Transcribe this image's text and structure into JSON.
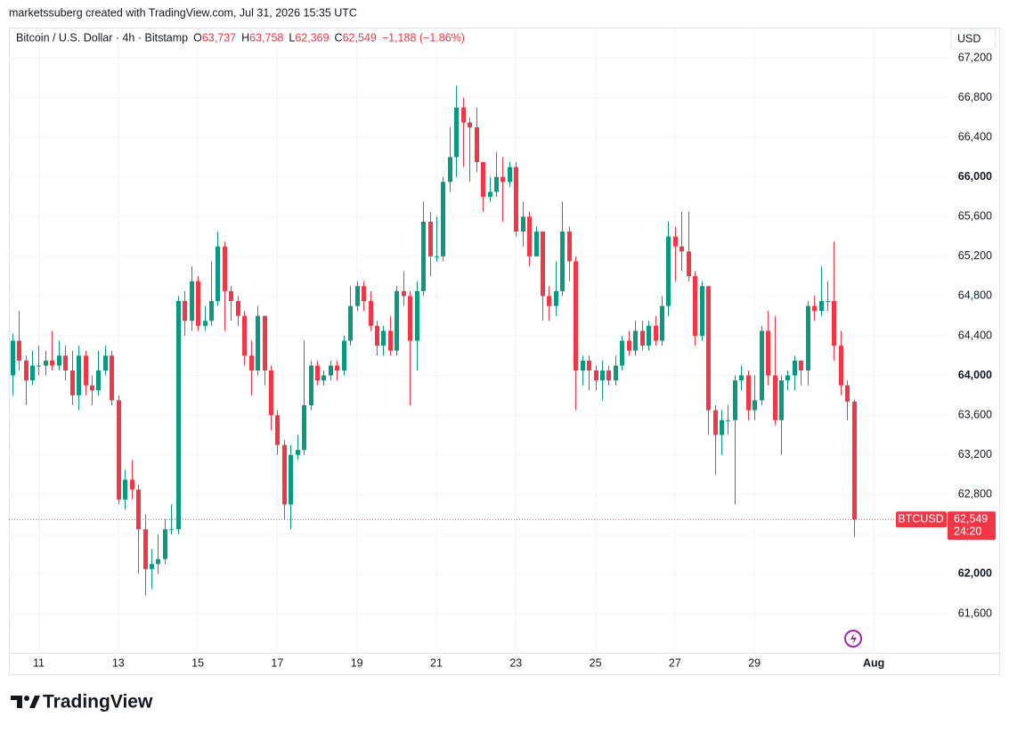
{
  "header": "marketssuberg created with TradingView.com, Jul 31, 2026 15:35 UTC",
  "footer": "TradingView",
  "chart_data": {
    "type": "candlestick",
    "title": "Bitcoin / U.S. Dollar · 4h · Bitstamp",
    "ohlc_letters": [
      "O",
      "H",
      "L",
      "C"
    ],
    "ohlc_labels": [
      "63,737",
      "63,758",
      "62,369",
      "62,549"
    ],
    "change_label": "−1,188 (−1.86%)",
    "currency": "USD",
    "symbol": "BTCUSD",
    "last_price_label": "62,549",
    "countdown": "24:20",
    "up_color": "#089981",
    "down_color": "#f23645",
    "grid": true,
    "open": [
      64000,
      64350,
      64150,
      63950,
      64100,
      64100,
      64150,
      64100,
      64200,
      64050,
      63800,
      64200,
      63900,
      63850,
      64050,
      64200,
      63750,
      62750,
      62950,
      62850,
      62450,
      62050,
      62100,
      62150,
      62450,
      62450,
      64750,
      64550,
      64950,
      64500,
      64550,
      64750,
      65300,
      64850,
      64750,
      64600,
      64200,
      64050,
      64600,
      64050,
      63600,
      63300,
      62700,
      63200,
      63250,
      63700,
      64100,
      63950,
      64000,
      64100,
      64050,
      64350,
      64700,
      64900,
      64750,
      64500,
      64300,
      64450,
      64250,
      64850,
      64800,
      64350,
      64850,
      65550,
      65200,
      65200,
      65950,
      66200,
      66700,
      66550,
      66500,
      66150,
      65800,
      65850,
      66000,
      65950,
      66100,
      65450,
      65600,
      65200,
      65450,
      64800,
      64700,
      64850,
      65450,
      65150,
      64050,
      64150,
      64050,
      63950,
      64050,
      63950,
      64100,
      64350,
      64250,
      64450,
      64300,
      64500,
      64350,
      64700,
      65400,
      65300,
      65250,
      65000,
      64400,
      64900,
      63650,
      63400,
      63550,
      63550,
      63950,
      64000,
      63650,
      63750,
      64450,
      64000,
      63550,
      63950,
      64000,
      64150,
      64050,
      64700,
      64650,
      64750,
      64750,
      64300,
      63900,
      63737
    ],
    "high": [
      64420,
      64650,
      64200,
      64250,
      64300,
      64250,
      64450,
      64350,
      64300,
      64250,
      64300,
      64250,
      64000,
      64250,
      64300,
      64250,
      63800,
      63050,
      63150,
      62900,
      62600,
      62250,
      62400,
      62550,
      62700,
      64800,
      64850,
      65100,
      65000,
      64700,
      65150,
      65450,
      65350,
      64900,
      64800,
      64650,
      64350,
      64700,
      64600,
      64100,
      63650,
      63350,
      63300,
      63400,
      64350,
      64150,
      64150,
      64050,
      64150,
      64150,
      64400,
      64900,
      64950,
      64950,
      64850,
      64550,
      64500,
      64600,
      64900,
      65050,
      64850,
      64950,
      65750,
      65650,
      65600,
      66000,
      66500,
      66920,
      66800,
      66600,
      66700,
      66150,
      66000,
      66250,
      66200,
      66150,
      66150,
      65750,
      65650,
      65500,
      65450,
      64900,
      65150,
      65750,
      65500,
      65200,
      64200,
      64200,
      64100,
      64150,
      64100,
      64200,
      64400,
      64450,
      64550,
      64550,
      64550,
      64600,
      64800,
      65550,
      65500,
      65650,
      65650,
      65050,
      64950,
      64900,
      63700,
      63650,
      63700,
      64000,
      64100,
      64050,
      64000,
      64500,
      64650,
      64600,
      64000,
      64050,
      64200,
      64150,
      64750,
      64800,
      65100,
      64950,
      65350,
      64450,
      63950,
      63758
    ],
    "low": [
      63800,
      64050,
      63700,
      63900,
      64000,
      64000,
      64050,
      64050,
      63950,
      63700,
      63650,
      63800,
      63700,
      63800,
      64000,
      63700,
      62700,
      62650,
      62750,
      62000,
      61780,
      61850,
      62000,
      62100,
      62400,
      62400,
      64400,
      64450,
      64450,
      64450,
      64500,
      64700,
      64450,
      64550,
      64500,
      64100,
      63800,
      64000,
      63900,
      63450,
      63200,
      62550,
      62450,
      63150,
      63200,
      63650,
      63900,
      63900,
      63950,
      63950,
      64000,
      64300,
      64650,
      64650,
      64450,
      64200,
      64200,
      64200,
      64200,
      64700,
      63700,
      64050,
      64800,
      65000,
      65150,
      65150,
      65850,
      66000,
      66100,
      65950,
      66050,
      65650,
      65750,
      65800,
      65550,
      65900,
      65400,
      65300,
      65100,
      65200,
      64550,
      64550,
      64600,
      64800,
      64950,
      63650,
      63900,
      63850,
      63850,
      63750,
      63900,
      63900,
      64050,
      64200,
      64200,
      64250,
      64250,
      64300,
      64300,
      64600,
      64950,
      65050,
      64950,
      64300,
      64350,
      63400,
      63000,
      63200,
      63400,
      62700,
      63850,
      63550,
      63550,
      63700,
      63900,
      63500,
      63200,
      63850,
      63850,
      63900,
      63900,
      64550,
      64600,
      64650,
      64150,
      63800,
      63550,
      62369
    ],
    "close": [
      64350,
      64150,
      63950,
      64100,
      64100,
      64150,
      64100,
      64200,
      64050,
      63800,
      64200,
      63900,
      63850,
      64050,
      64200,
      63750,
      62750,
      62950,
      62850,
      62450,
      62050,
      62100,
      62150,
      62450,
      62450,
      64750,
      64550,
      64950,
      64500,
      64550,
      64750,
      65300,
      64850,
      64750,
      64600,
      64200,
      64050,
      64600,
      64050,
      63600,
      63300,
      62700,
      63200,
      63250,
      63700,
      64100,
      63950,
      64000,
      64100,
      64050,
      64350,
      64700,
      64900,
      64750,
      64500,
      64300,
      64450,
      64250,
      64850,
      64800,
      64350,
      64850,
      65550,
      65200,
      65200,
      65950,
      66200,
      66700,
      66550,
      66500,
      66150,
      65800,
      65850,
      66000,
      65950,
      66100,
      65450,
      65600,
      65200,
      65450,
      64800,
      64700,
      64850,
      65450,
      65150,
      64050,
      64150,
      64050,
      63950,
      64050,
      63950,
      64100,
      64350,
      64250,
      64450,
      64300,
      64500,
      64350,
      64700,
      65400,
      65300,
      65250,
      65000,
      64400,
      64900,
      63650,
      63400,
      63550,
      63550,
      63950,
      64000,
      63650,
      63750,
      64450,
      64000,
      63550,
      63950,
      64000,
      64150,
      64050,
      64700,
      64650,
      64750,
      64750,
      64300,
      63900,
      63737,
      62549
    ],
    "ylim": [
      61205,
      67496
    ],
    "yticks": [
      {
        "value": 61600,
        "label": "61,600"
      },
      {
        "value": 62000,
        "label": "62,000"
      },
      {
        "value": 62400,
        "label": "62,400"
      },
      {
        "value": 62800,
        "label": "62,800"
      },
      {
        "value": 63200,
        "label": "63,200"
      },
      {
        "value": 63600,
        "label": "63,600"
      },
      {
        "value": 64000,
        "label": "64,000"
      },
      {
        "value": 64400,
        "label": "64,400"
      },
      {
        "value": 64800,
        "label": "64,800"
      },
      {
        "value": 65200,
        "label": "65,200"
      },
      {
        "value": 65600,
        "label": "65,600"
      },
      {
        "value": 66000,
        "label": "66,000"
      },
      {
        "value": 66400,
        "label": "66,400"
      },
      {
        "value": 66800,
        "label": "66,800"
      },
      {
        "value": 67200,
        "label": "67,200"
      }
    ],
    "xlim": [
      -0.5,
      141
    ],
    "xticks": [
      {
        "value": 4,
        "label": "11"
      },
      {
        "value": 16,
        "label": "13"
      },
      {
        "value": 28,
        "label": "15"
      },
      {
        "value": 40,
        "label": "17"
      },
      {
        "value": 52,
        "label": "19"
      },
      {
        "value": 64,
        "label": "21"
      },
      {
        "value": 76,
        "label": "23"
      },
      {
        "value": 88,
        "label": "25"
      },
      {
        "value": 100,
        "label": "27"
      },
      {
        "value": 112,
        "label": "29"
      },
      {
        "value": 130,
        "label": "Aug"
      }
    ]
  }
}
